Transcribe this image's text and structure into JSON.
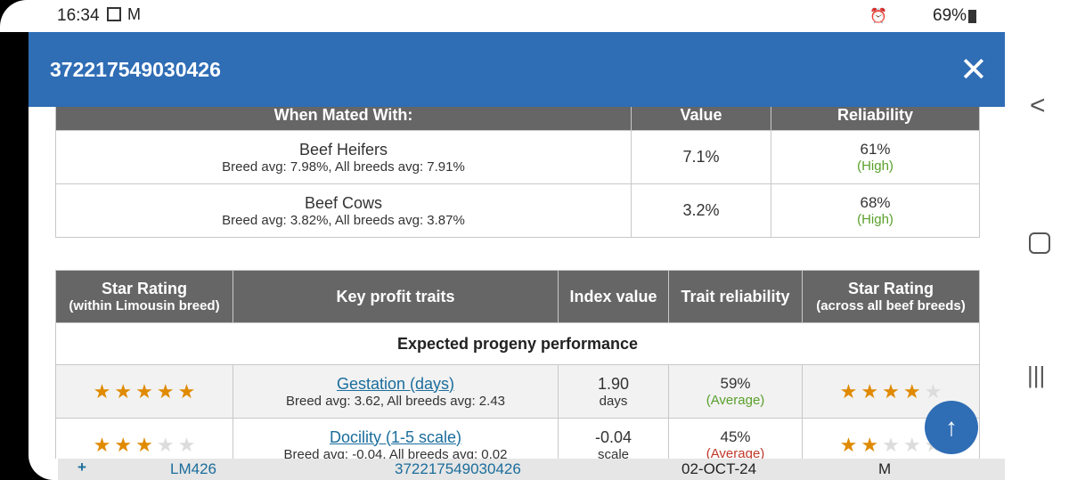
{
  "status_bar": {
    "time": "16:34",
    "battery": "69%"
  },
  "header": {
    "title": "372217549030426"
  },
  "mating_table": {
    "headers": [
      "When Mated With:",
      "Value",
      "Reliability"
    ],
    "rows": [
      {
        "name": "Beef Heifers",
        "averages": "Breed avg: 7.98%, All breeds avg: 7.91%",
        "value": "7.1%",
        "reliability": "61%",
        "reliability_level": "(High)"
      },
      {
        "name": "Beef Cows",
        "averages": "Breed avg: 3.82%, All breeds avg: 3.87%",
        "value": "3.2%",
        "reliability": "68%",
        "reliability_level": "(High)"
      }
    ]
  },
  "traits_table": {
    "headers": [
      {
        "title": "Star Rating",
        "subtitle": "(within Limousin breed)"
      },
      {
        "title": "Key profit traits"
      },
      {
        "title": "Index value"
      },
      {
        "title": "Trait reliability"
      },
      {
        "title": "Star Rating",
        "subtitle": "(across all beef breeds)"
      }
    ],
    "section": "Expected progeny performance",
    "rows": [
      {
        "stars_breed": 5,
        "trait": "Gestation (days)",
        "averages": "Breed avg: 3.62, All breeds avg: 2.43",
        "index_value": "1.90",
        "unit": "days",
        "reliability": "59%",
        "reliability_level": "(Average)",
        "stars_all": 4
      },
      {
        "stars_breed": 3,
        "trait": "Docility (1-5 scale)",
        "averages": "Breed avg: -0.04, All breeds avg: 0.02",
        "index_value": "-0.04",
        "unit": "scale",
        "reliability": "45%",
        "reliability_level": "(Average)",
        "stars_all": 2
      }
    ]
  },
  "list_row": {
    "cells": [
      "+",
      "LM426",
      "372217549030426",
      "02-OCT-24",
      "M"
    ]
  }
}
